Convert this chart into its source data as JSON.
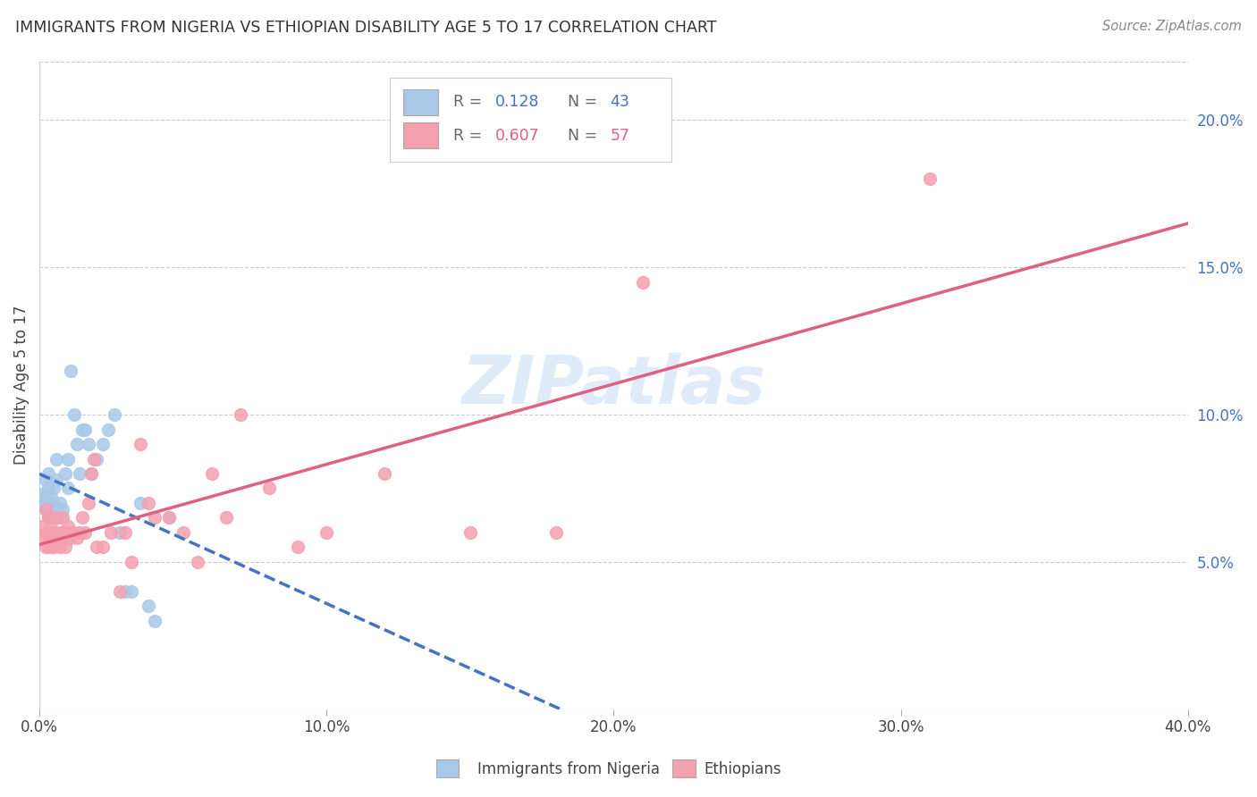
{
  "title": "IMMIGRANTS FROM NIGERIA VS ETHIOPIAN DISABILITY AGE 5 TO 17 CORRELATION CHART",
  "source": "Source: ZipAtlas.com",
  "ylabel": "Disability Age 5 to 17",
  "xlim": [
    0.0,
    0.4
  ],
  "ylim": [
    0.0,
    0.22
  ],
  "xticks": [
    0.0,
    0.1,
    0.2,
    0.3,
    0.4
  ],
  "xtick_labels": [
    "0.0%",
    "10.0%",
    "20.0%",
    "30.0%",
    "40.0%"
  ],
  "yticks_right": [
    0.05,
    0.1,
    0.15,
    0.2
  ],
  "ytick_labels_right": [
    "5.0%",
    "10.0%",
    "15.0%",
    "20.0%"
  ],
  "nigeria_color": "#a8c8e8",
  "ethiopia_color": "#f4a0b0",
  "nigeria_line_color": "#4472c4",
  "ethiopia_line_color": "#e06080",
  "nigeria_x": [
    0.001,
    0.001,
    0.002,
    0.002,
    0.002,
    0.003,
    0.003,
    0.003,
    0.003,
    0.004,
    0.004,
    0.004,
    0.005,
    0.005,
    0.005,
    0.006,
    0.006,
    0.007,
    0.007,
    0.008,
    0.008,
    0.009,
    0.01,
    0.01,
    0.011,
    0.012,
    0.013,
    0.014,
    0.015,
    0.016,
    0.017,
    0.018,
    0.02,
    0.022,
    0.024,
    0.026,
    0.028,
    0.03,
    0.032,
    0.035,
    0.038,
    0.04,
    0.045
  ],
  "nigeria_y": [
    0.07,
    0.073,
    0.068,
    0.072,
    0.078,
    0.065,
    0.07,
    0.075,
    0.08,
    0.068,
    0.072,
    0.065,
    0.07,
    0.075,
    0.06,
    0.085,
    0.078,
    0.07,
    0.065,
    0.06,
    0.068,
    0.08,
    0.075,
    0.085,
    0.115,
    0.1,
    0.09,
    0.08,
    0.095,
    0.095,
    0.09,
    0.08,
    0.085,
    0.09,
    0.095,
    0.1,
    0.06,
    0.04,
    0.04,
    0.07,
    0.035,
    0.03,
    0.065
  ],
  "ethiopia_x": [
    0.001,
    0.001,
    0.002,
    0.002,
    0.002,
    0.003,
    0.003,
    0.003,
    0.004,
    0.004,
    0.004,
    0.005,
    0.005,
    0.005,
    0.006,
    0.006,
    0.007,
    0.007,
    0.008,
    0.008,
    0.009,
    0.009,
    0.01,
    0.01,
    0.011,
    0.011,
    0.012,
    0.013,
    0.014,
    0.015,
    0.016,
    0.017,
    0.018,
    0.019,
    0.02,
    0.022,
    0.025,
    0.028,
    0.03,
    0.032,
    0.035,
    0.038,
    0.04,
    0.045,
    0.05,
    0.055,
    0.06,
    0.065,
    0.07,
    0.08,
    0.09,
    0.1,
    0.12,
    0.15,
    0.18,
    0.21,
    0.31
  ],
  "ethiopia_y": [
    0.058,
    0.062,
    0.055,
    0.068,
    0.06,
    0.055,
    0.06,
    0.065,
    0.058,
    0.063,
    0.055,
    0.055,
    0.06,
    0.058,
    0.058,
    0.065,
    0.055,
    0.06,
    0.058,
    0.065,
    0.055,
    0.06,
    0.058,
    0.062,
    0.06,
    0.058,
    0.06,
    0.058,
    0.06,
    0.065,
    0.06,
    0.07,
    0.08,
    0.085,
    0.055,
    0.055,
    0.06,
    0.04,
    0.06,
    0.05,
    0.09,
    0.07,
    0.065,
    0.065,
    0.06,
    0.05,
    0.08,
    0.065,
    0.1,
    0.075,
    0.055,
    0.06,
    0.08,
    0.06,
    0.06,
    0.145,
    0.18
  ],
  "watermark": "ZIPatlas",
  "grid_color": "#cccccc",
  "background_color": "#ffffff"
}
